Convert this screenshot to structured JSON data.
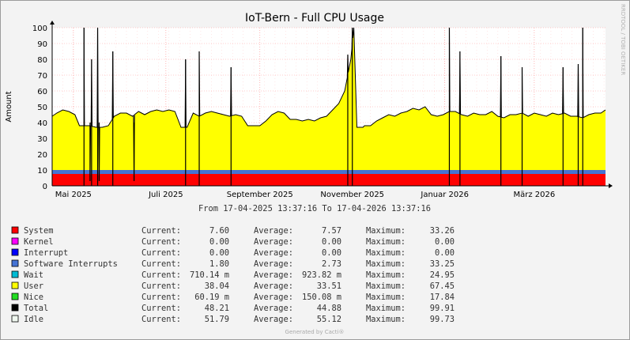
{
  "chart_data": {
    "type": "area",
    "title": "IoT-Bern - Full CPU Usage",
    "ylabel": "Amount",
    "xlabel": "",
    "ylim": [
      0,
      100
    ],
    "y_ticks": [
      0,
      10,
      20,
      30,
      40,
      50,
      60,
      70,
      80,
      90,
      100
    ],
    "x_range": [
      "2025-04-17",
      "2026-04-17"
    ],
    "x_ticks": [
      {
        "date": "2025-05-01",
        "label": "Mai 2025"
      },
      {
        "date": "2025-07-01",
        "label": "Juli 2025"
      },
      {
        "date": "2025-09-01",
        "label": "September 2025"
      },
      {
        "date": "2025-11-01",
        "label": "November 2025"
      },
      {
        "date": "2026-01-01",
        "label": "Januar 2026"
      },
      {
        "date": "2026-03-01",
        "label": "März 2026"
      }
    ],
    "grid": true,
    "time_range_label": "From 17-04-2025 13:37:16 To 17-04-2026 13:37:16",
    "watermark": "RRDTOOL / TOBI OETIKER",
    "colors": {
      "system": "#ff0000",
      "softirq": "#4573d4",
      "user": "#ffff00",
      "total_line": "#000000",
      "background": "#f3f3f3",
      "plot_bg": "#ffffff",
      "grid": "#ff9999"
    },
    "total": {
      "x": [
        "2025-04-17",
        "2025-04-20",
        "2025-04-24",
        "2025-04-28",
        "2025-05-02",
        "2025-05-05",
        "2025-05-08",
        "2025-05-12",
        "2025-05-16",
        "2025-05-20",
        "2025-05-24",
        "2025-05-28",
        "2025-06-01",
        "2025-06-05",
        "2025-06-09",
        "2025-06-13",
        "2025-06-17",
        "2025-06-21",
        "2025-06-25",
        "2025-06-29",
        "2025-07-03",
        "2025-07-07",
        "2025-07-11",
        "2025-07-15",
        "2025-07-19",
        "2025-07-23",
        "2025-07-27",
        "2025-07-31",
        "2025-08-04",
        "2025-08-08",
        "2025-08-12",
        "2025-08-16",
        "2025-08-20",
        "2025-08-24",
        "2025-08-28",
        "2025-09-01",
        "2025-09-05",
        "2025-09-09",
        "2025-09-13",
        "2025-09-17",
        "2025-09-21",
        "2025-09-25",
        "2025-09-29",
        "2025-10-03",
        "2025-10-07",
        "2025-10-11",
        "2025-10-15",
        "2025-10-19",
        "2025-10-23",
        "2025-10-27",
        "2025-10-31",
        "2025-11-02",
        "2025-11-04",
        "2025-11-06",
        "2025-11-08",
        "2025-11-09",
        "2025-11-13",
        "2025-11-17",
        "2025-11-21",
        "2025-11-25",
        "2025-11-29",
        "2025-12-03",
        "2025-12-07",
        "2025-12-11",
        "2025-12-15",
        "2025-12-19",
        "2025-12-23",
        "2025-12-27",
        "2025-12-31",
        "2026-01-04",
        "2026-01-08",
        "2026-01-12",
        "2026-01-16",
        "2026-01-20",
        "2026-01-24",
        "2026-01-28",
        "2026-02-01",
        "2026-02-05",
        "2026-02-09",
        "2026-02-13",
        "2026-02-17",
        "2026-02-21",
        "2026-02-25",
        "2026-03-01",
        "2026-03-05",
        "2026-03-09",
        "2026-03-13",
        "2026-03-17",
        "2026-03-21",
        "2026-03-25",
        "2026-03-29",
        "2026-04-02",
        "2026-04-06",
        "2026-04-10",
        "2026-04-14",
        "2026-04-17"
      ],
      "y": [
        44,
        46,
        48,
        47,
        45,
        38,
        38,
        38,
        37,
        37,
        38,
        44,
        46,
        46,
        44,
        47,
        45,
        47,
        48,
        47,
        48,
        47,
        37,
        37,
        46,
        44,
        46,
        47,
        46,
        45,
        44,
        45,
        44,
        38,
        38,
        38,
        41,
        45,
        47,
        46,
        42,
        42,
        41,
        42,
        41,
        43,
        44,
        48,
        52,
        60,
        80,
        100,
        37,
        37,
        37,
        38,
        38,
        41,
        43,
        45,
        44,
        46,
        47,
        49,
        48,
        50,
        45,
        44,
        45,
        47,
        47,
        45,
        44,
        46,
        45,
        45,
        47,
        44,
        43,
        45,
        45,
        46,
        44,
        46,
        45,
        44,
        46,
        45,
        46,
        44,
        44,
        43,
        45,
        46,
        46,
        48
      ]
    },
    "user": {
      "note_values": "approximately total minus system minus softirq",
      "series_name": "User"
    },
    "system_approx_level": 7.5,
    "softirq_approx_level": 2.5,
    "spikes": [
      {
        "x": "2025-05-08",
        "y": 100
      },
      {
        "x": "2025-05-13",
        "y": 80
      },
      {
        "x": "2025-05-17",
        "y": 100
      },
      {
        "x": "2025-05-27",
        "y": 85
      },
      {
        "x": "2025-07-14",
        "y": 80
      },
      {
        "x": "2025-07-23",
        "y": 85
      },
      {
        "x": "2025-08-13",
        "y": 75
      },
      {
        "x": "2025-10-29",
        "y": 83
      },
      {
        "x": "2025-11-01",
        "y": 100
      },
      {
        "x": "2026-01-04",
        "y": 100
      },
      {
        "x": "2026-01-11",
        "y": 85
      },
      {
        "x": "2026-02-07",
        "y": 82
      },
      {
        "x": "2026-02-21",
        "y": 75
      },
      {
        "x": "2026-03-20",
        "y": 75
      },
      {
        "x": "2026-03-30",
        "y": 77
      },
      {
        "x": "2026-04-02",
        "y": 100
      }
    ],
    "dips": [
      {
        "x": "2025-05-12",
        "y": 3
      },
      {
        "x": "2025-05-18",
        "y": 3
      },
      {
        "x": "2025-06-10",
        "y": 3
      }
    ]
  },
  "legend": [
    {
      "name": "System",
      "color": "#ff0000",
      "current": "7.60",
      "average": "7.57",
      "maximum": "33.26"
    },
    {
      "name": "Kernel",
      "color": "#ff00ff",
      "current": "0.00",
      "average": "0.00",
      "maximum": "0.00"
    },
    {
      "name": "Interrupt",
      "color": "#0000ff",
      "current": "0.00",
      "average": "0.00",
      "maximum": "0.00"
    },
    {
      "name": "Software Interrupts",
      "color": "#4573d4",
      "current": "1.80",
      "average": "2.73",
      "maximum": "33.25"
    },
    {
      "name": "Wait",
      "color": "#00bcd4",
      "current": "710.14 m",
      "average": "923.82 m",
      "maximum": "24.95"
    },
    {
      "name": "User",
      "color": "#ffff00",
      "current": "38.04",
      "average": "33.51",
      "maximum": "67.45"
    },
    {
      "name": "Nice",
      "color": "#22dd22",
      "current": "60.19 m",
      "average": "150.08 m",
      "maximum": "17.84"
    },
    {
      "name": "Total",
      "color": "#000000",
      "current": "48.21",
      "average": "44.88",
      "maximum": "99.91"
    },
    {
      "name": "Idle",
      "color": "#f0f8f0",
      "current": "51.79",
      "average": "55.12",
      "maximum": "99.73"
    }
  ],
  "legend_labels": {
    "current": "Current:",
    "average": "Average:",
    "maximum": "Maximum:"
  },
  "footer": "Generated by Cacti®"
}
